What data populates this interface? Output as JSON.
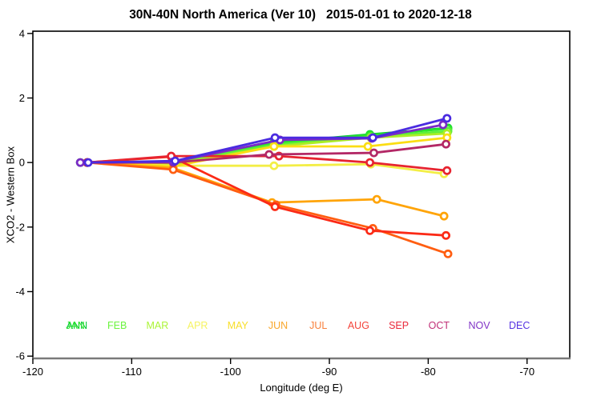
{
  "chart_data": {
    "type": "line",
    "title": "30N-40N North America (Ver 10)   2015-01-01 to 2020-12-18",
    "xlabel": "Longitude (deg E)",
    "ylabel": "XCO2 - Western Box",
    "xlim": [
      -120,
      -65.68
    ],
    "ylim": [
      -6.07,
      4.07
    ],
    "x_ticks": [
      -120,
      -110,
      -100,
      -90,
      -80,
      -70
    ],
    "y_ticks": [
      -6,
      -4,
      -2,
      0,
      2,
      4
    ],
    "grid": false,
    "marker": "open-circle",
    "legend_position": "inside-bottom",
    "axis_color": "#000000",
    "bottom_axis_color": "#7a7a7a",
    "series": [
      {
        "name": "ANN",
        "color": "#00C832",
        "x": [
          -115.2,
          -105.8,
          -95.6,
          -85.9,
          -78.0
        ],
        "y": [
          0,
          0.03,
          0.62,
          0.87,
          1.07
        ]
      },
      {
        "name": "JAN",
        "color": "#2BE52B",
        "x": [
          -114.5,
          -105.8,
          -95.6,
          -85.9,
          -78.0
        ],
        "y": [
          0,
          0.02,
          0.6,
          0.85,
          1.05
        ]
      },
      {
        "name": "FEB",
        "color": "#5FEF38",
        "x": [
          -114.5,
          -105.8,
          -95.6,
          -85.8,
          -78.0
        ],
        "y": [
          0,
          0.0,
          0.55,
          0.8,
          0.97
        ]
      },
      {
        "name": "MAR",
        "color": "#AAEE26",
        "x": [
          -114.5,
          -105.8,
          -95.6,
          -85.8,
          -78.1
        ],
        "y": [
          0,
          -0.05,
          0.5,
          0.77,
          0.9
        ]
      },
      {
        "name": "APR",
        "color": "#F3EE46",
        "x": [
          -114.5,
          -105.8,
          -95.6,
          -85.8,
          -78.4
        ],
        "y": [
          0,
          -0.1,
          -0.1,
          -0.05,
          -0.35
        ]
      },
      {
        "name": "MAY",
        "color": "#FBDD13",
        "x": [
          -114.5,
          -105.8,
          -95.6,
          -86.1,
          -78.1
        ],
        "y": [
          0,
          -0.12,
          0.5,
          0.5,
          0.77
        ]
      },
      {
        "name": "JUN",
        "color": "#FFA408",
        "x": [
          -114.5,
          -105.8,
          -95.8,
          -85.2,
          -78.4
        ],
        "y": [
          0,
          -0.17,
          -1.24,
          -1.14,
          -1.66
        ]
      },
      {
        "name": "JUL",
        "color": "#FF5E11",
        "x": [
          -114.5,
          -105.8,
          -95.4,
          -85.6,
          -78.0
        ],
        "y": [
          0,
          -0.22,
          -1.31,
          -2.04,
          -2.83
        ]
      },
      {
        "name": "AUG",
        "color": "#FB2A16",
        "x": [
          -114.5,
          -106.0,
          -95.5,
          -85.9,
          -78.2
        ],
        "y": [
          0,
          0.18,
          -1.37,
          -2.11,
          -2.26
        ]
      },
      {
        "name": "SEP",
        "color": "#E72430",
        "x": [
          -114.5,
          -106.0,
          -95.1,
          -85.9,
          -78.1
        ],
        "y": [
          0,
          0.2,
          0.2,
          0.0,
          -0.25
        ]
      },
      {
        "name": "OCT",
        "color": "#B32866",
        "x": [
          -114.5,
          -105.8,
          -96.1,
          -85.5,
          -78.2
        ],
        "y": [
          0,
          0.0,
          0.25,
          0.3,
          0.57
        ]
      },
      {
        "name": "NOV",
        "color": "#7B2AC6",
        "x": [
          -115.2,
          -105.8,
          -95.0,
          -85.7,
          -78.5
        ],
        "y": [
          0,
          0.02,
          0.7,
          0.75,
          1.17
        ]
      },
      {
        "name": "DEC",
        "color": "#4A2BE0",
        "x": [
          -114.4,
          -105.6,
          -95.5,
          -85.6,
          -78.1
        ],
        "y": [
          0,
          0.05,
          0.77,
          0.77,
          1.37
        ]
      }
    ],
    "legend": [
      {
        "label": "ANN",
        "color": "#00C832",
        "slot": 0
      },
      {
        "label": "JAN",
        "color": "#2BE52B",
        "slot": 0
      },
      {
        "label": "FEB",
        "color": "#6BF43F",
        "slot": 1
      },
      {
        "label": "MAR",
        "color": "#ABF436",
        "slot": 2
      },
      {
        "label": "APR",
        "color": "#F5F360",
        "slot": 3
      },
      {
        "label": "MAY",
        "color": "#F8DF2A",
        "slot": 4
      },
      {
        "label": "JUN",
        "color": "#F9A72B",
        "slot": 5
      },
      {
        "label": "JUL",
        "color": "#F8803C",
        "slot": 6
      },
      {
        "label": "AUG",
        "color": "#F4433A",
        "slot": 7
      },
      {
        "label": "SEP",
        "color": "#E9293B",
        "slot": 8
      },
      {
        "label": "OCT",
        "color": "#C13077",
        "slot": 9
      },
      {
        "label": "NOV",
        "color": "#8033C6",
        "slot": 10
      },
      {
        "label": "DEC",
        "color": "#5633E2",
        "slot": 11
      }
    ]
  }
}
